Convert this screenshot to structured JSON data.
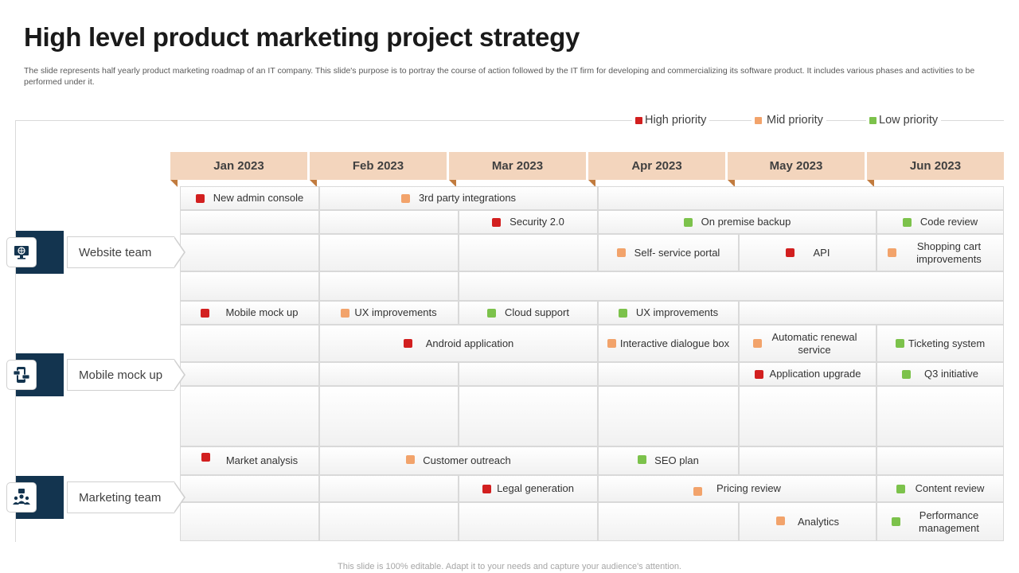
{
  "header": {
    "title": "High level product marketing project strategy",
    "subtitle": "The slide represents half yearly product marketing roadmap of an IT company. This slide's purpose is to portray the course of action followed by the IT firm for developing and commercializing its software product. It includes various phases and activities to be performed under it."
  },
  "colors": {
    "high": "#d21f1f",
    "mid": "#f2a36b",
    "low": "#7cc24b",
    "month_bg": "#f3d5bd",
    "badge": "#13344f"
  },
  "legend": [
    {
      "label": "High priority",
      "priority": "high"
    },
    {
      "label": "Mid priority",
      "priority": "mid"
    },
    {
      "label": "Low priority",
      "priority": "low"
    }
  ],
  "months": [
    "Jan 2023",
    "Feb 2023",
    "Mar 2023",
    "Apr 2023",
    "May 2023",
    "Jun 2023"
  ],
  "teams": [
    {
      "name": "Website team",
      "icon": "monitor-globe-icon"
    },
    {
      "name": "Mobile mock up",
      "icon": "mobile-chat-icon"
    },
    {
      "name": "Marketing team",
      "icon": "people-group-icon"
    }
  ],
  "tasks": {
    "t1": {
      "label": "New admin console",
      "priority": "high"
    },
    "t2": {
      "label": "3rd party integrations",
      "priority": "mid"
    },
    "t3": {
      "label": "Security 2.0",
      "priority": "high"
    },
    "t4": {
      "label": "On premise backup",
      "priority": "low"
    },
    "t5": {
      "label": "Code review",
      "priority": "low"
    },
    "t6": {
      "label": "Self- service portal",
      "priority": "mid"
    },
    "t7": {
      "label": "API",
      "priority": "high"
    },
    "t8": {
      "label": "Shopping cart improvements",
      "priority": "mid"
    },
    "t9": {
      "label": "Mobile mock up",
      "priority": "high"
    },
    "t10": {
      "label": "UX improvements",
      "priority": "mid"
    },
    "t11": {
      "label": "Cloud support",
      "priority": "low"
    },
    "t12": {
      "label": "UX improvements",
      "priority": "low"
    },
    "t13": {
      "label": "Android application",
      "priority": "high"
    },
    "t14": {
      "label": "Interactive dialogue box",
      "priority": "mid"
    },
    "t15": {
      "label": "Automatic renewal service",
      "priority": "mid"
    },
    "t16": {
      "label": "Ticketing system",
      "priority": "low"
    },
    "t17": {
      "label": "Application upgrade",
      "priority": "high"
    },
    "t18": {
      "label": "Q3 initiative",
      "priority": "low"
    },
    "t19": {
      "label": "Market analysis",
      "priority": "high"
    },
    "t20": {
      "label": "Customer outreach",
      "priority": "mid"
    },
    "t21": {
      "label": "SEO plan",
      "priority": "low"
    },
    "t22": {
      "label": "Legal generation",
      "priority": "high"
    },
    "t23": {
      "label": "Pricing review",
      "priority": "mid"
    },
    "t24": {
      "label": "Content review",
      "priority": "low"
    },
    "t25": {
      "label": "Analytics",
      "priority": "mid"
    },
    "t26": {
      "label": "Performance management",
      "priority": "low"
    }
  },
  "footer": "This slide is 100% editable. Adapt it to your needs and capture your audience's attention."
}
